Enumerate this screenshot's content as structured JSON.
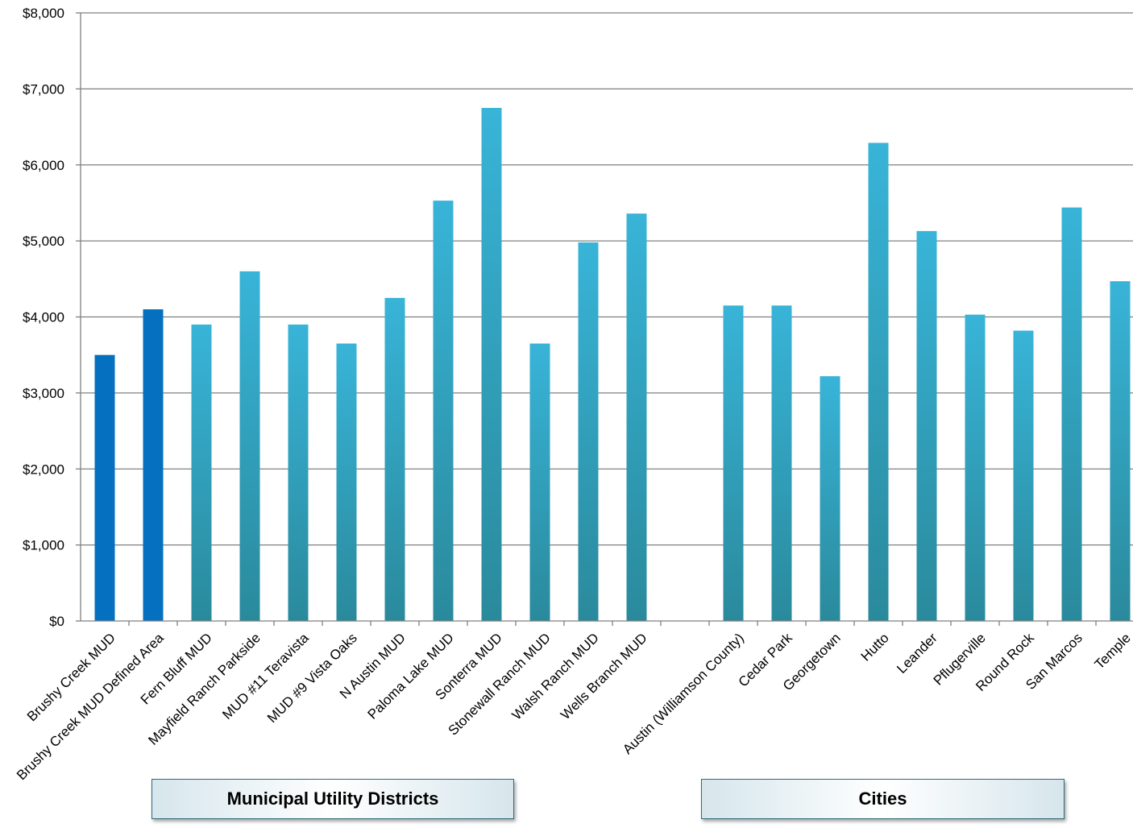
{
  "chart_data": {
    "type": "bar",
    "title": "",
    "xlabel": "",
    "ylabel": "",
    "ylim": [
      0,
      8000
    ],
    "yticks": [
      "$0",
      "$1,000",
      "$2,000",
      "$3,000",
      "$4,000",
      "$5,000",
      "$6,000",
      "$7,000",
      "$8,000"
    ],
    "grid": true,
    "categories": [
      "Brushy Creek MUD",
      "Brushy Creek MUD Defined Area",
      "Fern Bluff MUD",
      "Mayfield Ranch Parkside",
      "MUD #11 Teravista",
      "MUD #9 Vista Oaks",
      "N Austin MUD",
      "Paloma Lake MUD",
      "Sonterra MUD",
      "Stonewall Ranch MUD",
      "Walsh Ranch MUD",
      "Wells Branch MUD",
      "",
      "Austin (Williamson County)",
      "Cedar Park",
      "Georgetown",
      "Hutto",
      "Leander",
      "Pflugerville",
      "Round Rock",
      "San Marcos",
      "Temple"
    ],
    "values": [
      3500,
      4100,
      3900,
      4600,
      3900,
      3650,
      4250,
      5530,
      6750,
      3650,
      4980,
      5360,
      null,
      4150,
      4150,
      3220,
      6290,
      5130,
      4030,
      3820,
      5440,
      4470
    ],
    "highlight_indices": [
      0,
      1
    ],
    "colors": {
      "highlight": "#0570c0",
      "bar_top": "#38b4d8",
      "bar_bottom": "#2a8a9c",
      "grid": "#808080",
      "axis": "#808080"
    },
    "groups": [
      {
        "label": "Municipal Utility Districts"
      },
      {
        "label": "Cities"
      }
    ]
  }
}
